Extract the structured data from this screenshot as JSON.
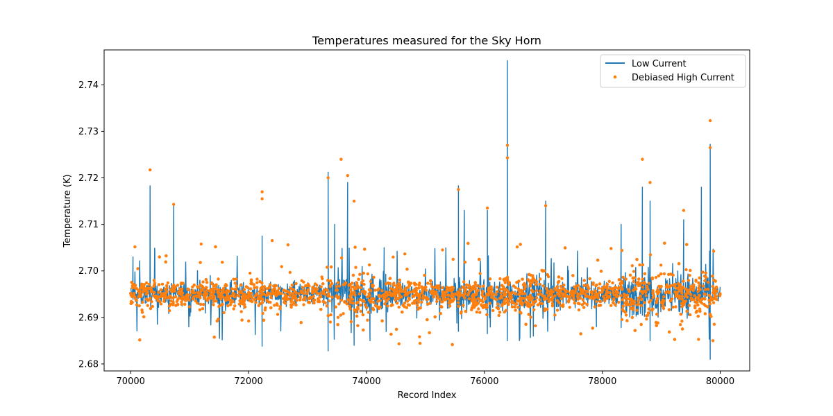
{
  "chart_data": {
    "type": "line",
    "title": "Temperatures measured for the Sky Horn",
    "xlabel": "Record Index",
    "ylabel": "Temperature (K)",
    "xlim": [
      69550,
      80500
    ],
    "ylim": [
      2.6785,
      2.7475
    ],
    "xticks": [
      70000,
      72000,
      74000,
      76000,
      78000,
      80000
    ],
    "xtick_labels": [
      "70000",
      "72000",
      "74000",
      "76000",
      "78000",
      "80000"
    ],
    "yticks": [
      2.68,
      2.69,
      2.7,
      2.71,
      2.72,
      2.73,
      2.74
    ],
    "ytick_labels": [
      "2.68",
      "2.69",
      "2.70",
      "2.71",
      "2.72",
      "2.73",
      "2.74"
    ],
    "grid": false,
    "legend_position": "top-right",
    "baseline": 2.695,
    "x_range": [
      70000,
      80000
    ],
    "series": [
      {
        "name": "Low Current",
        "style": "line",
        "color": "#1f77b4",
        "spikes": [
          {
            "x": 70040,
            "y": 2.703
          },
          {
            "x": 70330,
            "y": 2.7183
          },
          {
            "x": 70410,
            "y": 2.7045
          },
          {
            "x": 70730,
            "y": 2.714
          },
          {
            "x": 71350,
            "y": 2.699
          },
          {
            "x": 72230,
            "y": 2.7075
          },
          {
            "x": 72230,
            "y": 2.6838
          },
          {
            "x": 73350,
            "y": 2.7212
          },
          {
            "x": 73350,
            "y": 2.6828
          },
          {
            "x": 73460,
            "y": 2.71
          },
          {
            "x": 73680,
            "y": 2.719
          },
          {
            "x": 73790,
            "y": 2.684
          },
          {
            "x": 74060,
            "y": 2.685
          },
          {
            "x": 74300,
            "y": 2.705
          },
          {
            "x": 75560,
            "y": 2.7183
          },
          {
            "x": 75560,
            "y": 2.687
          },
          {
            "x": 75660,
            "y": 2.713
          },
          {
            "x": 76050,
            "y": 2.713
          },
          {
            "x": 76050,
            "y": 2.6865
          },
          {
            "x": 76390,
            "y": 2.7452
          },
          {
            "x": 76390,
            "y": 2.685
          },
          {
            "x": 76830,
            "y": 2.686
          },
          {
            "x": 77040,
            "y": 2.715
          },
          {
            "x": 77900,
            "y": 2.688
          },
          {
            "x": 78320,
            "y": 2.71
          },
          {
            "x": 78680,
            "y": 2.718
          },
          {
            "x": 78810,
            "y": 2.715
          },
          {
            "x": 78810,
            "y": 2.685
          },
          {
            "x": 79380,
            "y": 2.711
          },
          {
            "x": 79680,
            "y": 2.718
          },
          {
            "x": 79830,
            "y": 2.7272
          },
          {
            "x": 79830,
            "y": 2.681
          }
        ]
      },
      {
        "name": "Debiased High Current",
        "style": "scatter",
        "color": "#ff7f0e",
        "spikes": [
          {
            "x": 70330,
            "y": 2.7217
          },
          {
            "x": 70730,
            "y": 2.7143
          },
          {
            "x": 72230,
            "y": 2.717
          },
          {
            "x": 72230,
            "y": 2.7155
          },
          {
            "x": 72400,
            "y": 2.7065
          },
          {
            "x": 73350,
            "y": 2.72
          },
          {
            "x": 73570,
            "y": 2.724
          },
          {
            "x": 73680,
            "y": 2.7205
          },
          {
            "x": 73790,
            "y": 2.715
          },
          {
            "x": 75560,
            "y": 2.7175
          },
          {
            "x": 76050,
            "y": 2.7135
          },
          {
            "x": 76390,
            "y": 2.727
          },
          {
            "x": 76390,
            "y": 2.7243
          },
          {
            "x": 77040,
            "y": 2.714
          },
          {
            "x": 78680,
            "y": 2.724
          },
          {
            "x": 78810,
            "y": 2.719
          },
          {
            "x": 79380,
            "y": 2.713
          },
          {
            "x": 79830,
            "y": 2.7323
          },
          {
            "x": 79830,
            "y": 2.7265
          }
        ]
      }
    ]
  }
}
